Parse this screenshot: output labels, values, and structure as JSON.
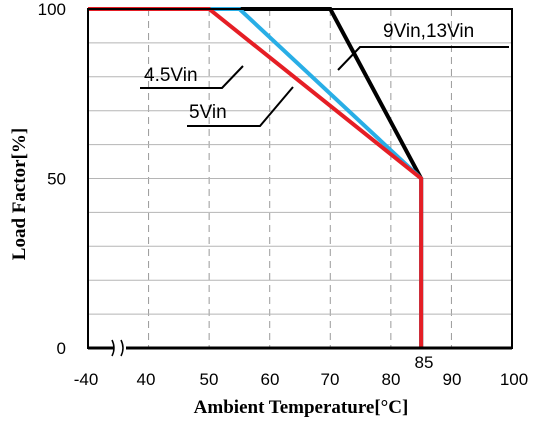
{
  "chart_data": {
    "type": "line",
    "title": "",
    "xlabel": "Ambient Temperature[°C]",
    "ylabel": "Load Factor[%]",
    "xlim": [
      30,
      100
    ],
    "ylim": [
      0,
      100
    ],
    "x_axis_break": true,
    "grid": "on",
    "x_tick_labels": [
      "-40",
      "40",
      "50",
      "60",
      "70",
      "80",
      "85",
      "90",
      "100"
    ],
    "y_tick_labels": [
      "0",
      "50",
      "100"
    ],
    "series": [
      {
        "name": "9Vin,13Vin",
        "color": "#000000",
        "points": [
          [
            30,
            100
          ],
          [
            70,
            100
          ],
          [
            85,
            50
          ],
          [
            85,
            0
          ]
        ]
      },
      {
        "name": "5Vin",
        "color": "#29aee6",
        "points": [
          [
            30,
            100
          ],
          [
            55,
            100
          ],
          [
            85,
            50
          ],
          [
            85,
            0
          ]
        ]
      },
      {
        "name": "4.5Vin",
        "color": "#e51e25",
        "points": [
          [
            30,
            100
          ],
          [
            50,
            100
          ],
          [
            85,
            50
          ],
          [
            85,
            0
          ]
        ]
      }
    ]
  }
}
